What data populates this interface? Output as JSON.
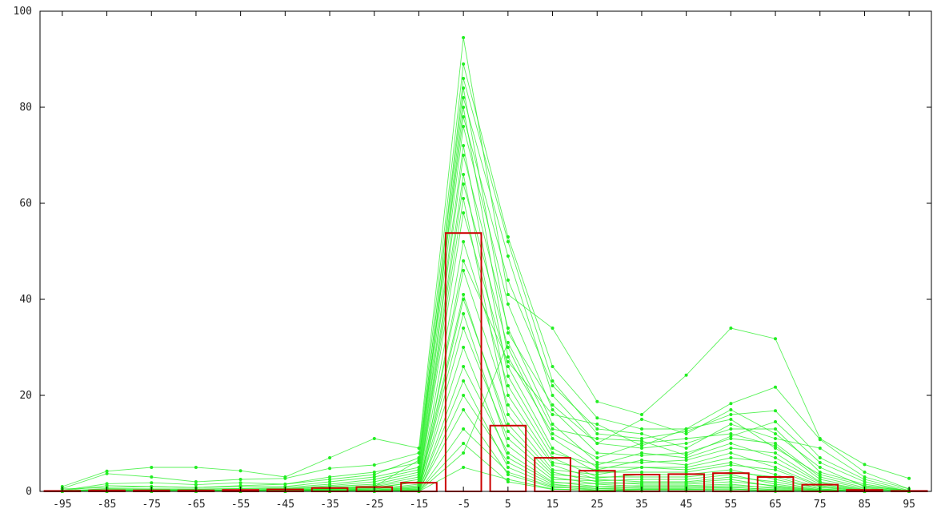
{
  "chart_data": {
    "type": "bar",
    "title": "",
    "xlabel": "",
    "ylabel": "",
    "categories": [
      "-95",
      "-85",
      "-75",
      "-65",
      "-55",
      "-45",
      "-35",
      "-25",
      "-15",
      "-5",
      "5",
      "15",
      "25",
      "35",
      "45",
      "55",
      "65",
      "75",
      "85",
      "95"
    ],
    "x": [
      -95,
      -85,
      -75,
      -65,
      -55,
      -45,
      -35,
      -25,
      -15,
      -5,
      5,
      15,
      25,
      35,
      45,
      55,
      65,
      75,
      85,
      95
    ],
    "xlim": [
      -100,
      100
    ],
    "ylim": [
      0,
      100
    ],
    "yticks": [
      0,
      20,
      40,
      60,
      80,
      100
    ],
    "grid": false,
    "series": [
      {
        "kind": "bars",
        "color": "#cc0000",
        "values": [
          0.1,
          0.2,
          0.2,
          0.2,
          0.3,
          0.4,
          0.7,
          0.9,
          1.8,
          53.8,
          13.7,
          7.0,
          4.3,
          3.5,
          3.6,
          3.8,
          3.0,
          1.4,
          0.3,
          0.1
        ]
      },
      {
        "kind": "lines",
        "color": "#22ee22",
        "description_values": "individual profiles, y per category",
        "profiles": [
          [
            1.0,
            4.2,
            5.0,
            5.0,
            4.3,
            3.0,
            7.0,
            11.0,
            9.0,
            94.5,
            41.0,
            34.0,
            18.7,
            16.0,
            24.2,
            34.0,
            31.8,
            11.0,
            5.6,
            2.7
          ],
          [
            0.6,
            3.7,
            3.0,
            2.0,
            2.5,
            2.7,
            4.8,
            5.5,
            8.0,
            89.0,
            53.0,
            26.0,
            15.3,
            13.0,
            13.0,
            18.3,
            21.7,
            10.8,
            4.0,
            0.5
          ],
          [
            0.2,
            1.6,
            1.8,
            1.4,
            1.8,
            1.5,
            3.0,
            4.0,
            6.0,
            86.0,
            52.0,
            23.0,
            12.0,
            11.0,
            12.5,
            16.0,
            16.8,
            7.0,
            2.5,
            0.2
          ],
          [
            0.1,
            1.2,
            1.0,
            0.8,
            1.0,
            1.0,
            2.0,
            3.0,
            5.0,
            82.0,
            49.0,
            20.0,
            10.0,
            9.0,
            10.0,
            13.0,
            13.0,
            4.0,
            1.5,
            0.1
          ],
          [
            0.0,
            0.6,
            0.5,
            0.5,
            0.6,
            0.6,
            1.2,
            2.0,
            4.0,
            76.0,
            39.0,
            17.0,
            8.0,
            7.5,
            8.0,
            11.0,
            10.0,
            3.0,
            0.8,
            0.0
          ],
          [
            0.0,
            0.3,
            0.3,
            0.3,
            0.3,
            0.4,
            0.8,
            1.2,
            3.0,
            70.0,
            34.0,
            14.0,
            6.0,
            6.0,
            6.5,
            9.0,
            8.0,
            2.0,
            0.4,
            0.0
          ],
          [
            0.0,
            0.2,
            0.2,
            0.2,
            0.2,
            0.3,
            0.5,
            0.8,
            2.0,
            64.0,
            30.0,
            11.0,
            5.0,
            5.0,
            5.0,
            7.0,
            6.0,
            1.5,
            0.2,
            0.0
          ],
          [
            0.0,
            0.1,
            0.1,
            0.1,
            0.1,
            0.2,
            0.3,
            0.5,
            1.5,
            58.0,
            26.0,
            9.0,
            4.0,
            4.0,
            4.0,
            5.5,
            4.5,
            1.0,
            0.1,
            0.0
          ],
          [
            0.0,
            0.0,
            0.0,
            0.0,
            0.0,
            0.1,
            0.2,
            0.3,
            1.0,
            52.0,
            22.0,
            7.0,
            3.0,
            3.0,
            3.0,
            4.0,
            3.0,
            0.5,
            0.0,
            0.0
          ],
          [
            0.0,
            0.0,
            0.0,
            0.0,
            0.0,
            0.0,
            0.1,
            0.2,
            0.7,
            46.0,
            18.0,
            5.5,
            2.5,
            2.0,
            2.0,
            3.0,
            2.0,
            0.3,
            0.0,
            0.0
          ],
          [
            0.0,
            0.0,
            0.0,
            0.0,
            0.0,
            0.0,
            0.0,
            0.1,
            0.4,
            40.0,
            14.0,
            4.0,
            2.0,
            1.5,
            1.5,
            2.0,
            1.2,
            0.2,
            0.0,
            0.0
          ],
          [
            0.0,
            0.0,
            0.0,
            0.0,
            0.0,
            0.0,
            0.0,
            0.0,
            0.2,
            34.0,
            11.0,
            3.0,
            1.5,
            1.0,
            1.0,
            1.2,
            0.8,
            0.1,
            0.0,
            0.0
          ],
          [
            0.0,
            0.0,
            0.0,
            0.0,
            0.0,
            0.0,
            0.0,
            0.0,
            0.1,
            26.0,
            8.0,
            2.0,
            1.0,
            0.6,
            0.6,
            0.8,
            0.4,
            0.0,
            0.0,
            0.0
          ],
          [
            0.0,
            0.0,
            0.0,
            0.0,
            0.0,
            0.0,
            0.0,
            0.0,
            0.0,
            20.0,
            6.0,
            1.5,
            0.6,
            0.4,
            0.4,
            0.5,
            0.2,
            0.0,
            0.0,
            0.0
          ],
          [
            0.0,
            0.0,
            0.0,
            0.0,
            0.0,
            0.0,
            0.0,
            0.0,
            0.0,
            13.0,
            4.0,
            1.0,
            0.3,
            0.2,
            0.2,
            0.2,
            0.1,
            0.0,
            0.0,
            0.0
          ],
          [
            0.0,
            0.0,
            0.0,
            0.0,
            0.0,
            0.0,
            0.0,
            0.0,
            0.0,
            5.0,
            2.5,
            0.5,
            0.2,
            0.1,
            0.1,
            0.1,
            0.0,
            0.0,
            0.0,
            0.0
          ],
          [
            0.2,
            0.4,
            0.5,
            0.4,
            0.6,
            0.8,
            1.5,
            2.5,
            4.5,
            80.0,
            28.0,
            12.0,
            7.0,
            10.0,
            11.0,
            12.0,
            9.5,
            2.5,
            0.6,
            0.1
          ],
          [
            0.1,
            0.2,
            0.3,
            0.2,
            0.3,
            0.5,
            1.0,
            1.5,
            3.5,
            72.0,
            24.0,
            8.0,
            5.5,
            8.0,
            7.0,
            10.0,
            7.0,
            1.8,
            0.3,
            0.0
          ],
          [
            0.0,
            0.1,
            0.1,
            0.1,
            0.2,
            0.3,
            0.6,
            1.0,
            2.5,
            66.0,
            20.0,
            6.0,
            4.5,
            6.5,
            5.5,
            8.0,
            5.0,
            1.2,
            0.2,
            0.0
          ],
          [
            0.0,
            0.0,
            0.0,
            0.1,
            0.1,
            0.2,
            0.4,
            0.7,
            2.0,
            61.0,
            16.0,
            4.5,
            3.5,
            5.0,
            4.5,
            6.0,
            3.5,
            0.8,
            0.1,
            0.0
          ],
          [
            0.0,
            0.0,
            0.0,
            0.0,
            0.0,
            0.1,
            0.3,
            0.5,
            1.2,
            41.0,
            12.5,
            3.5,
            2.8,
            3.5,
            3.5,
            4.5,
            2.5,
            0.5,
            0.0,
            0.0
          ],
          [
            0.0,
            0.0,
            0.0,
            0.0,
            0.0,
            0.0,
            0.2,
            0.3,
            0.8,
            37.0,
            9.5,
            2.5,
            2.2,
            2.5,
            2.5,
            3.5,
            1.5,
            0.3,
            0.0,
            0.0
          ],
          [
            0.0,
            0.0,
            0.0,
            0.0,
            0.0,
            0.0,
            0.1,
            0.2,
            0.5,
            30.0,
            7.0,
            1.8,
            1.6,
            1.8,
            1.8,
            2.5,
            1.0,
            0.2,
            0.0,
            0.0
          ],
          [
            0.0,
            0.0,
            0.0,
            0.0,
            0.0,
            0.0,
            0.0,
            0.1,
            0.3,
            23.0,
            5.0,
            1.2,
            1.0,
            1.2,
            1.2,
            1.5,
            0.6,
            0.1,
            0.0,
            0.0
          ],
          [
            0.0,
            0.0,
            0.0,
            0.0,
            0.0,
            0.0,
            0.0,
            0.0,
            0.2,
            17.0,
            3.5,
            0.8,
            0.6,
            0.8,
            0.8,
            0.9,
            0.3,
            0.0,
            0.0,
            0.0
          ],
          [
            0.0,
            0.0,
            0.0,
            0.0,
            0.0,
            0.0,
            0.0,
            0.0,
            0.1,
            10.0,
            2.0,
            0.4,
            0.3,
            0.4,
            0.4,
            0.5,
            0.1,
            0.0,
            0.0,
            0.0
          ],
          [
            0.5,
            0.8,
            1.0,
            0.8,
            1.2,
            1.5,
            2.5,
            3.5,
            7.0,
            84.0,
            33.0,
            18.0,
            10.0,
            15.0,
            12.0,
            17.0,
            12.0,
            5.0,
            1.0,
            0.2
          ],
          [
            0.0,
            0.0,
            0.0,
            0.0,
            0.0,
            0.2,
            0.5,
            1.0,
            6.5,
            78.0,
            44.0,
            22.0,
            13.0,
            12.0,
            9.0,
            14.0,
            11.0,
            9.0,
            3.0,
            0.5
          ],
          [
            0.0,
            0.0,
            0.0,
            0.0,
            0.0,
            0.0,
            0.0,
            0.0,
            0.0,
            48.0,
            27.0,
            16.0,
            14.0,
            9.5,
            13.0,
            15.0,
            9.0,
            3.5,
            1.2,
            0.0
          ],
          [
            0.0,
            0.0,
            0.0,
            0.0,
            0.0,
            0.0,
            0.0,
            0.0,
            0.0,
            8.0,
            31.0,
            13.0,
            11.0,
            10.5,
            7.5,
            11.5,
            14.5,
            6.0,
            2.0,
            0.0
          ]
        ]
      }
    ]
  }
}
